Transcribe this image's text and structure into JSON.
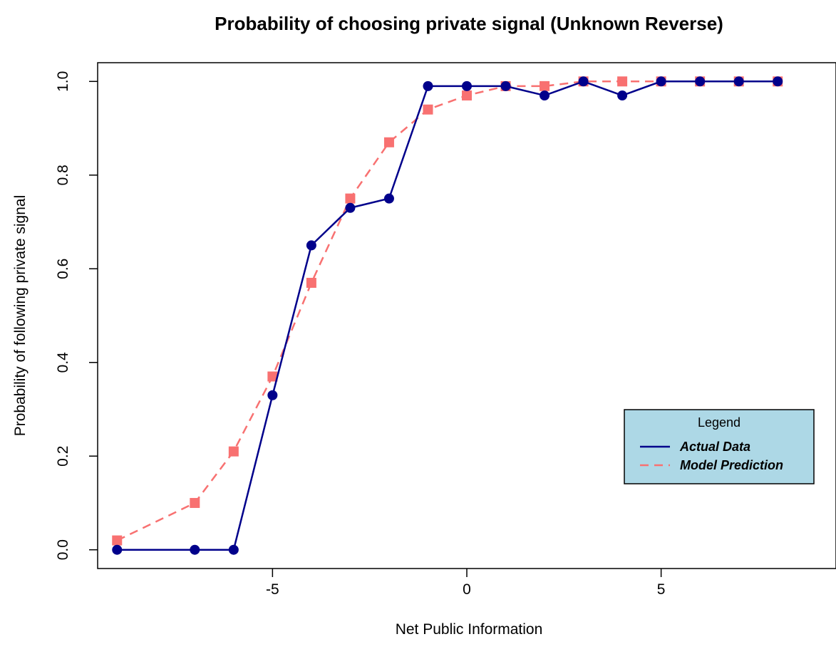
{
  "chart_data": {
    "type": "line",
    "title": "Probability of choosing private signal (Unknown Reverse)",
    "xlabel": "Net Public Information",
    "ylabel": "Probability of following private signal",
    "xlim": [
      -9.5,
      9.5
    ],
    "ylim": [
      -0.04,
      1.04
    ],
    "x_ticks": [
      -5,
      0,
      5
    ],
    "y_ticks": [
      0.0,
      0.2,
      0.4,
      0.6,
      0.8,
      1.0
    ],
    "x_tick_labels": [
      "-5",
      "0",
      "5"
    ],
    "y_tick_labels": [
      "0.0",
      "0.2",
      "0.4",
      "0.6",
      "0.8",
      "1.0"
    ],
    "grid": false,
    "legend": {
      "title": "Legend",
      "placement": "right",
      "background": "#add8e6"
    },
    "series": [
      {
        "name": "Actual Data",
        "color": "#00008b",
        "line_style": "solid",
        "marker": "circle",
        "x": [
          -9,
          -7,
          -6,
          -5,
          -4,
          -3,
          -2,
          -1,
          0,
          1,
          2,
          3,
          4,
          5,
          6,
          7,
          8
        ],
        "y": [
          0.0,
          0.0,
          0.0,
          0.33,
          0.65,
          0.73,
          0.75,
          0.99,
          0.99,
          0.99,
          0.97,
          1.0,
          0.97,
          1.0,
          1.0,
          1.0,
          1.0
        ]
      },
      {
        "name": "Model Prediction",
        "color": "#f87171",
        "line_style": "dashed",
        "marker": "square",
        "x": [
          -9,
          -7,
          -6,
          -5,
          -4,
          -3,
          -2,
          -1,
          0,
          1,
          2,
          3,
          4,
          5,
          6,
          7,
          8
        ],
        "y": [
          0.02,
          0.1,
          0.21,
          0.37,
          0.57,
          0.75,
          0.87,
          0.94,
          0.97,
          0.99,
          0.99,
          1.0,
          1.0,
          1.0,
          1.0,
          1.0,
          1.0
        ]
      }
    ]
  }
}
